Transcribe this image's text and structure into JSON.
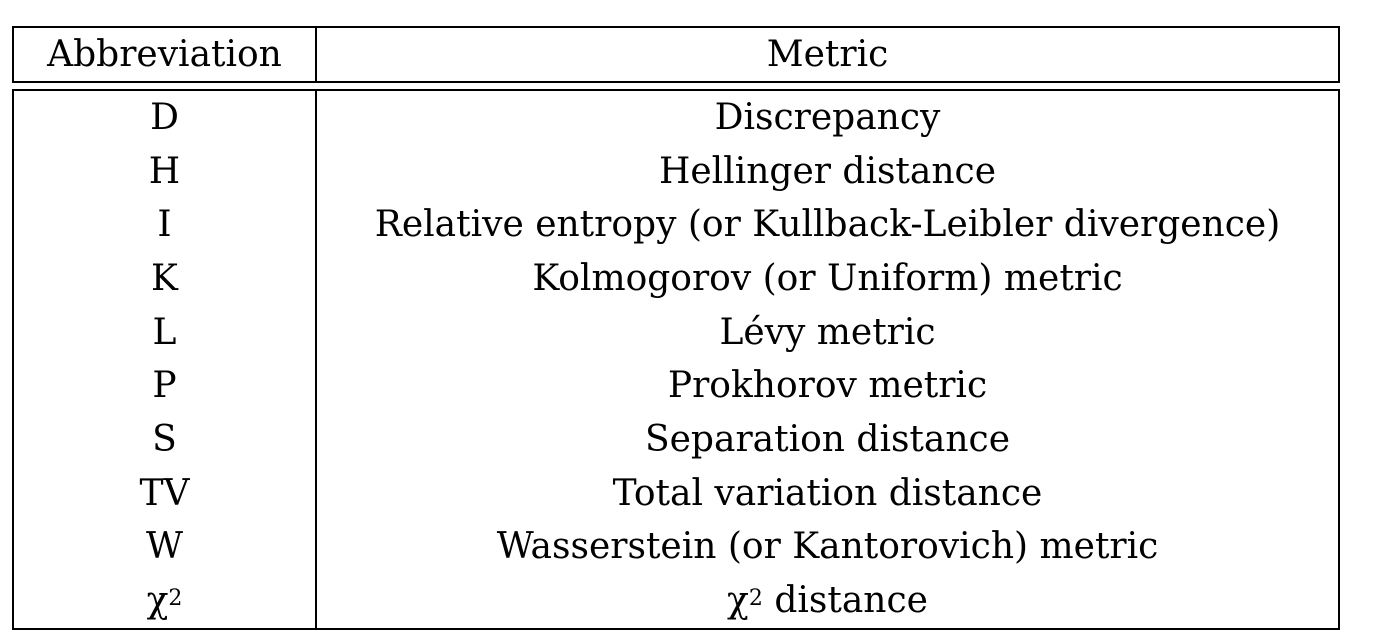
{
  "table": {
    "headers": {
      "abbreviation": "Abbreviation",
      "metric": "Metric"
    },
    "rows": [
      {
        "abbr": "D",
        "metric": "Discrepancy"
      },
      {
        "abbr": "H",
        "metric": "Hellinger distance"
      },
      {
        "abbr": "I",
        "metric": "Relative entropy (or Kullback-Leibler divergence)"
      },
      {
        "abbr": "K",
        "metric": "Kolmogorov (or Uniform) metric"
      },
      {
        "abbr": "L",
        "metric": "Lévy metric"
      },
      {
        "abbr": "P",
        "metric": "Prokhorov metric"
      },
      {
        "abbr": "S",
        "metric": "Separation distance"
      },
      {
        "abbr": "TV",
        "metric": "Total variation distance"
      },
      {
        "abbr": "W",
        "metric": "Wasserstein (or Kantorovich) metric"
      },
      {
        "abbr_base": "χ",
        "abbr_sup": "2",
        "metric_base": "χ",
        "metric_sup": "2",
        "metric_rest": " distance"
      }
    ]
  }
}
